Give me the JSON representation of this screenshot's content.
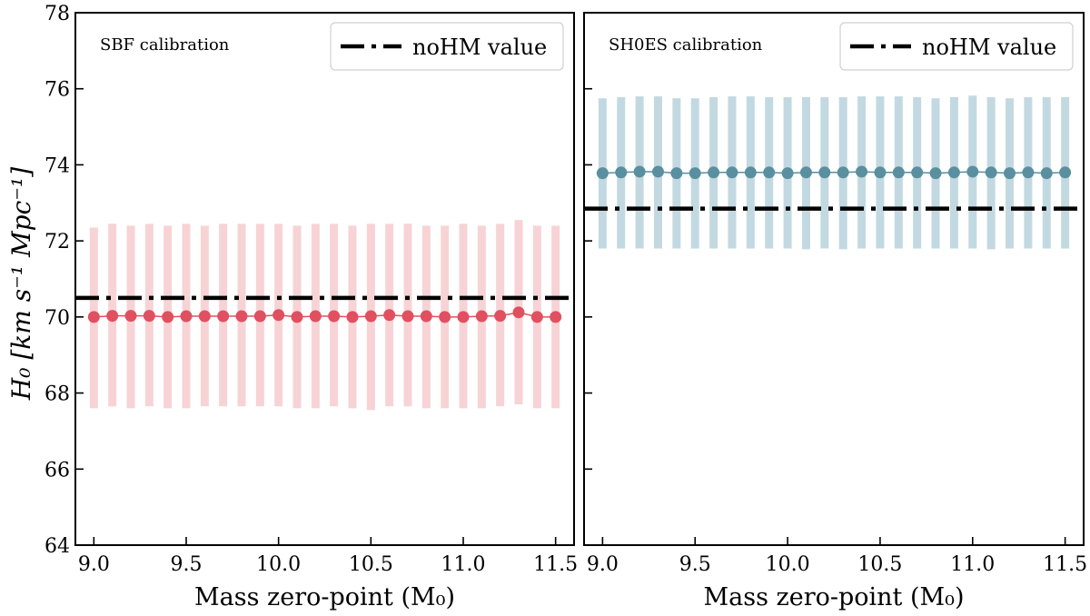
{
  "chart_data": [
    {
      "type": "scatter",
      "panel_label": "SBF calibration",
      "xlabel": "Mass zero-point (M₀)",
      "ylabel": "H₀  [km s⁻¹ Mpc⁻¹]",
      "ylim": [
        64,
        78
      ],
      "xlim": [
        8.9,
        11.6
      ],
      "xticks": [
        "9.0",
        "9.5",
        "10.0",
        "10.5",
        "11.0",
        "11.5"
      ],
      "yticks": [
        "64",
        "66",
        "68",
        "70",
        "72",
        "74",
        "76",
        "78"
      ],
      "legend": {
        "label": "noHM value",
        "position": "top-right",
        "style": "dash-dot"
      },
      "reference_line": 70.5,
      "series": [
        {
          "name": "SBF",
          "color": "#e05060",
          "errorbar_color": "#f7d3d6",
          "x": [
            9.0,
            9.1,
            9.2,
            9.3,
            9.4,
            9.5,
            9.6,
            9.7,
            9.8,
            9.9,
            10.0,
            10.1,
            10.2,
            10.3,
            10.4,
            10.5,
            10.6,
            10.7,
            10.8,
            10.9,
            11.0,
            11.1,
            11.2,
            11.3,
            11.4,
            11.5
          ],
          "y": [
            70.0,
            70.03,
            70.03,
            70.03,
            70.0,
            70.02,
            70.02,
            70.02,
            70.02,
            70.02,
            70.05,
            70.0,
            70.02,
            70.02,
            70.0,
            70.02,
            70.05,
            70.02,
            70.02,
            70.0,
            70.0,
            70.02,
            70.03,
            70.12,
            70.0,
            70.0
          ],
          "ylow": [
            67.6,
            67.65,
            67.6,
            67.65,
            67.6,
            67.6,
            67.65,
            67.65,
            67.65,
            67.65,
            67.65,
            67.6,
            67.6,
            67.65,
            67.6,
            67.55,
            67.65,
            67.65,
            67.6,
            67.6,
            67.6,
            67.6,
            67.65,
            67.7,
            67.6,
            67.6
          ],
          "yhigh": [
            72.35,
            72.45,
            72.4,
            72.45,
            72.4,
            72.45,
            72.4,
            72.45,
            72.45,
            72.45,
            72.45,
            72.4,
            72.45,
            72.45,
            72.4,
            72.45,
            72.45,
            72.45,
            72.4,
            72.4,
            72.45,
            72.4,
            72.45,
            72.55,
            72.4,
            72.4
          ]
        }
      ]
    },
    {
      "type": "scatter",
      "panel_label": "SH0ES calibration",
      "xlabel": "Mass zero-point (M₀)",
      "ylim": [
        64,
        78
      ],
      "xlim": [
        8.9,
        11.6
      ],
      "xticks": [
        "9.0",
        "9.5",
        "10.0",
        "10.5",
        "11.0",
        "11.5"
      ],
      "legend": {
        "label": "noHM value",
        "position": "top-right",
        "style": "dash-dot"
      },
      "reference_line": 72.85,
      "series": [
        {
          "name": "SH0ES",
          "color": "#5a8fa0",
          "errorbar_color": "#c3d9e1",
          "x": [
            9.0,
            9.1,
            9.2,
            9.3,
            9.4,
            9.5,
            9.6,
            9.7,
            9.8,
            9.9,
            10.0,
            10.1,
            10.2,
            10.3,
            10.4,
            10.5,
            10.6,
            10.7,
            10.8,
            10.9,
            11.0,
            11.1,
            11.2,
            11.3,
            11.4,
            11.5
          ],
          "y": [
            73.78,
            73.8,
            73.82,
            73.82,
            73.78,
            73.78,
            73.8,
            73.8,
            73.8,
            73.8,
            73.78,
            73.8,
            73.8,
            73.8,
            73.82,
            73.8,
            73.8,
            73.8,
            73.78,
            73.8,
            73.82,
            73.8,
            73.78,
            73.8,
            73.78,
            73.8
          ],
          "ylow": [
            71.8,
            71.8,
            71.8,
            71.8,
            71.8,
            71.8,
            71.8,
            71.8,
            71.8,
            71.8,
            71.8,
            71.78,
            71.8,
            71.78,
            71.8,
            71.8,
            71.8,
            71.8,
            71.8,
            71.8,
            71.8,
            71.78,
            71.8,
            71.8,
            71.8,
            71.8
          ],
          "yhigh": [
            75.75,
            75.78,
            75.8,
            75.8,
            75.75,
            75.75,
            75.78,
            75.8,
            75.8,
            75.78,
            75.78,
            75.78,
            75.78,
            75.78,
            75.8,
            75.8,
            75.8,
            75.78,
            75.75,
            75.78,
            75.82,
            75.78,
            75.75,
            75.78,
            75.78,
            75.78
          ]
        }
      ]
    }
  ]
}
